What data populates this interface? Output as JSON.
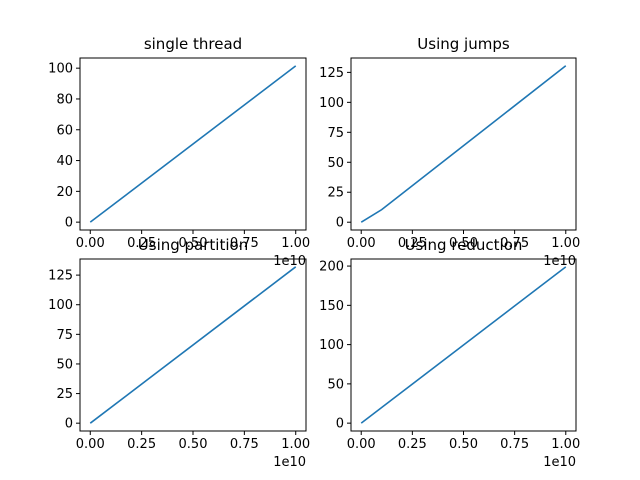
{
  "chart_data": [
    {
      "type": "line",
      "title": "single thread",
      "xlabel": "",
      "ylabel": "",
      "x": [
        0,
        10000000000
      ],
      "series": [
        {
          "values": [
            0,
            101.5
          ]
        }
      ],
      "xlim": [
        -500000000.0,
        10500000000.0
      ],
      "ylim": [
        -5.1,
        106.6
      ],
      "x_ticks": [
        0,
        2500000000.0,
        5000000000.0,
        7500000000.0,
        10000000000.0
      ],
      "x_tick_labels": [
        "0.00",
        "0.25",
        "0.50",
        "0.75",
        "1.00"
      ],
      "x_offset_text": "1e10",
      "y_ticks": [
        0,
        20,
        40,
        60,
        80,
        100
      ],
      "y_tick_labels": [
        "0",
        "20",
        "40",
        "60",
        "80",
        "100"
      ],
      "grid": false,
      "line_color": "#1f77b4"
    },
    {
      "type": "line",
      "title": "Using jumps",
      "xlabel": "",
      "ylabel": "",
      "x": [
        0,
        1000000000,
        10000000000
      ],
      "series": [
        {
          "values": [
            0,
            10.5,
            130.5
          ]
        }
      ],
      "xlim": [
        -500000000.0,
        10500000000.0
      ],
      "ylim": [
        -6.5,
        137
      ],
      "x_ticks": [
        0,
        2500000000.0,
        5000000000.0,
        7500000000.0,
        10000000000.0
      ],
      "x_tick_labels": [
        "0.00",
        "0.25",
        "0.50",
        "0.75",
        "1.00"
      ],
      "x_offset_text": "1e10",
      "y_ticks": [
        0,
        25,
        50,
        75,
        100,
        125
      ],
      "y_tick_labels": [
        "0",
        "25",
        "50",
        "75",
        "100",
        "125"
      ],
      "grid": false,
      "line_color": "#1f77b4"
    },
    {
      "type": "line",
      "title": "Using partition",
      "xlabel": "",
      "ylabel": "",
      "x": [
        0,
        10000000000
      ],
      "series": [
        {
          "values": [
            0,
            132
          ]
        }
      ],
      "xlim": [
        -500000000.0,
        10500000000.0
      ],
      "ylim": [
        -6.6,
        138.6
      ],
      "x_ticks": [
        0,
        2500000000.0,
        5000000000.0,
        7500000000.0,
        10000000000.0
      ],
      "x_tick_labels": [
        "0.00",
        "0.25",
        "0.50",
        "0.75",
        "1.00"
      ],
      "x_offset_text": "1e10",
      "y_ticks": [
        0,
        25,
        50,
        75,
        100,
        125
      ],
      "y_tick_labels": [
        "0",
        "25",
        "50",
        "75",
        "100",
        "125"
      ],
      "grid": false,
      "line_color": "#1f77b4"
    },
    {
      "type": "line",
      "title": "Using reduction",
      "xlabel": "",
      "ylabel": "",
      "x": [
        0,
        10000000000
      ],
      "series": [
        {
          "values": [
            0,
            199
          ]
        }
      ],
      "xlim": [
        -500000000.0,
        10500000000.0
      ],
      "ylim": [
        -10,
        209
      ],
      "x_ticks": [
        0,
        2500000000.0,
        5000000000.0,
        7500000000.0,
        10000000000.0
      ],
      "x_tick_labels": [
        "0.00",
        "0.25",
        "0.50",
        "0.75",
        "1.00"
      ],
      "x_offset_text": "1e10",
      "y_ticks": [
        0,
        50,
        100,
        150,
        200
      ],
      "y_tick_labels": [
        "0",
        "50",
        "100",
        "150",
        "200"
      ],
      "grid": false,
      "line_color": "#1f77b4"
    }
  ]
}
